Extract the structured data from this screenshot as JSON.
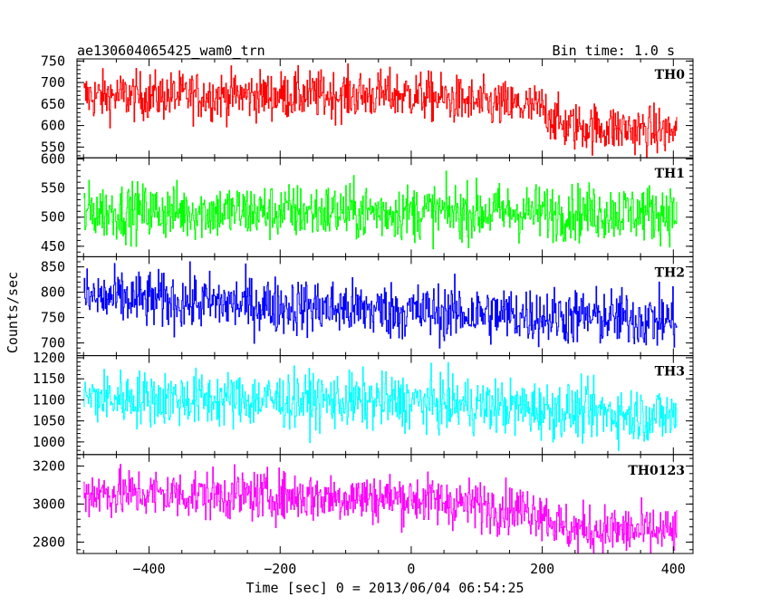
{
  "chart_data": {
    "type": "line",
    "title": "ae130604065425_wam0_trn",
    "bin_time": "Bin time: 1.0 s",
    "xlabel": "Time [sec] 0 = 2013/06/04 06:54:25",
    "ylabel": "Counts/sec",
    "xlim": [
      -510,
      430
    ],
    "x_ticks": [
      -400,
      -200,
      0,
      200,
      400
    ],
    "x_tick_labels": [
      "−400",
      "−200",
      "0",
      "200",
      "400"
    ],
    "data_x_range": [
      -500,
      405
    ],
    "series": [
      {
        "name": "TH0",
        "color": "#ff0000",
        "ylim": [
          525,
          755
        ],
        "y_ticks": [
          550,
          600,
          650,
          700,
          750
        ],
        "y_tick_labels": [
          "550",
          "600",
          "650",
          "700",
          "750"
        ],
        "trend_t": [
          -500,
          0,
          100,
          200,
          230,
          405
        ],
        "trend_v": [
          668,
          672,
          652,
          640,
          600,
          585
        ],
        "noise": 28
      },
      {
        "name": "TH1",
        "color": "#00ff00",
        "ylim": [
          432,
          602
        ],
        "y_ticks": [
          450,
          500,
          550,
          600
        ],
        "y_tick_labels": [
          "450",
          "500",
          "550",
          "600"
        ],
        "trend_t": [
          -500,
          405
        ],
        "trend_v": [
          510,
          508
        ],
        "noise": 24
      },
      {
        "name": "TH2",
        "color": "#0000ff",
        "ylim": [
          675,
          870
        ],
        "y_ticks": [
          700,
          750,
          800,
          850
        ],
        "y_tick_labels": [
          "700",
          "750",
          "800",
          "850"
        ],
        "trend_t": [
          -500,
          0,
          405
        ],
        "trend_v": [
          790,
          762,
          745
        ],
        "noise": 28
      },
      {
        "name": "TH3",
        "color": "#00ffff",
        "ylim": [
          970,
          1205
        ],
        "y_ticks": [
          1000,
          1050,
          1100,
          1150,
          1200
        ],
        "y_tick_labels": [
          "1000",
          "1050",
          "1100",
          "1150",
          "1200"
        ],
        "trend_t": [
          -500,
          0,
          405
        ],
        "trend_v": [
          1105,
          1095,
          1060
        ],
        "noise": 33
      },
      {
        "name": "TH0123",
        "color": "#ff00ff",
        "ylim": [
          2740,
          3260
        ],
        "y_ticks": [
          2800,
          3000,
          3200
        ],
        "y_tick_labels": [
          "2800",
          "3000",
          "3200"
        ],
        "trend_t": [
          -500,
          0,
          200,
          230,
          405
        ],
        "trend_v": [
          3060,
          3030,
          2960,
          2870,
          2850
        ],
        "noise": 65
      }
    ]
  }
}
